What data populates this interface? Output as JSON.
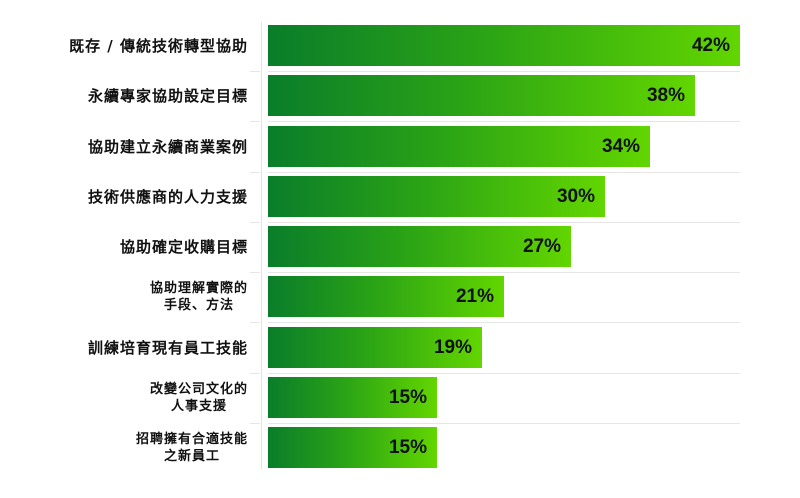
{
  "chart_data": {
    "type": "bar",
    "orientation": "horizontal",
    "categories": [
      "既存 / 傳統技術轉型協助",
      "永續專家協助設定目標",
      "協助建立永續商業案例",
      "技術供應商的人力支援",
      "協助確定收購目標",
      "協助理解實際的手段、方法",
      "訓練培育現有員工技能",
      "改變公司文化的人事支援",
      "招聘擁有合適技能之新員工"
    ],
    "values": [
      42,
      38,
      34,
      30,
      27,
      21,
      19,
      15,
      15
    ],
    "value_labels": [
      "42%",
      "38%",
      "34%",
      "30%",
      "27%",
      "21%",
      "19%",
      "15%",
      "15%"
    ],
    "unit": "%",
    "title": "",
    "xlabel": "",
    "ylabel": "",
    "xlim": [
      0,
      42
    ],
    "grid": false,
    "legend": null,
    "colors": {
      "bar_start": "#0a7d2a",
      "bar_end": "#62d600"
    }
  },
  "rows": [
    {
      "line1": "既存 / 傳統技術轉型協助",
      "line2": "",
      "value": "42%"
    },
    {
      "line1": "永續專家協助設定目標",
      "line2": "",
      "value": "38%"
    },
    {
      "line1": "協助建立永續商業案例",
      "line2": "",
      "value": "34%"
    },
    {
      "line1": "技術供應商的人力支援",
      "line2": "",
      "value": "30%"
    },
    {
      "line1": "協助確定收購目標",
      "line2": "",
      "value": "27%"
    },
    {
      "line1": "協助理解實際的",
      "line2": "手段、方法",
      "value": "21%"
    },
    {
      "line1": "訓練培育現有員工技能",
      "line2": "",
      "value": "19%"
    },
    {
      "line1": "改變公司文化的",
      "line2": "人事支援",
      "value": "15%"
    },
    {
      "line1": "招聘擁有合適技能",
      "line2": "之新員工",
      "value": "15%"
    }
  ]
}
